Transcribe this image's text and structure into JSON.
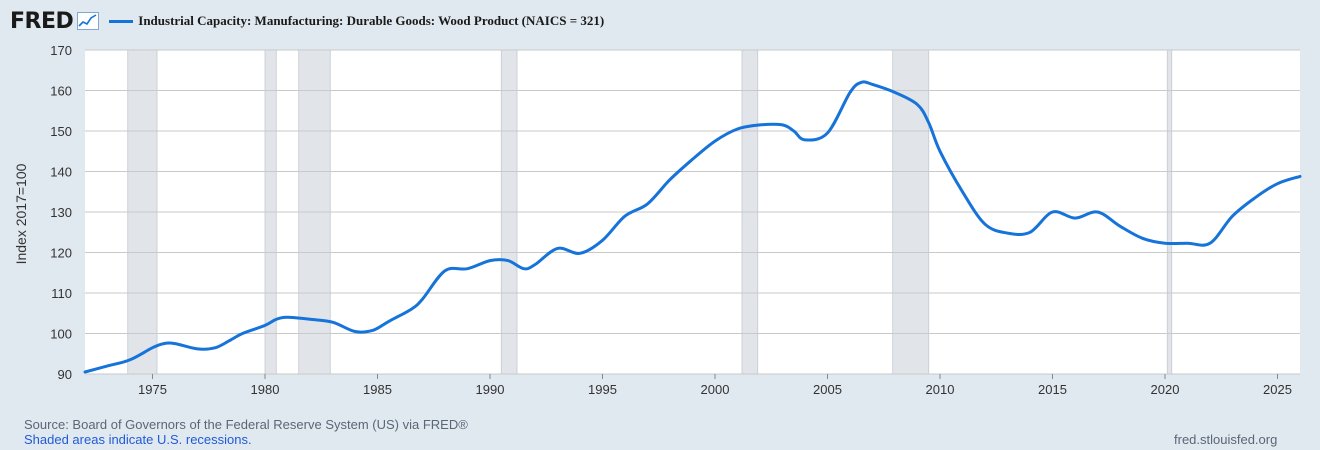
{
  "header": {
    "logo_text": "FRED",
    "logo_icon": "line-chart-icon",
    "series_title": "Industrial Capacity: Manufacturing: Durable Goods: Wood Product (NAICS = 321)"
  },
  "footer": {
    "source": "Source: Board of Governors of the Federal Reserve System (US) via FRED®",
    "recession_note": "Shaded areas indicate U.S. recessions.",
    "site": "fred.stlouisfed.org"
  },
  "colors": {
    "page_background": "#e1e9f0",
    "plot_background": "#ffffff",
    "series_line": "#1673da",
    "recession_band": "#e1e5ea",
    "gridline": "#c9c9c9"
  },
  "chart_data": {
    "type": "line",
    "title": "Industrial Capacity: Manufacturing: Durable Goods: Wood Product (NAICS = 321)",
    "xlabel": "",
    "ylabel": "Index 2017=100",
    "xlim": [
      1972.0,
      2026.0
    ],
    "ylim": [
      90,
      170
    ],
    "x_ticks": [
      1975,
      1980,
      1985,
      1990,
      1995,
      2000,
      2005,
      2010,
      2015,
      2020,
      2025
    ],
    "y_ticks": [
      90,
      100,
      110,
      120,
      130,
      140,
      150,
      160,
      170
    ],
    "grid": "horizontal",
    "recessions": [
      [
        1973.9,
        1975.2
      ],
      [
        1980.0,
        1980.5
      ],
      [
        1981.5,
        1982.9
      ],
      [
        1990.5,
        1991.2
      ],
      [
        2001.2,
        2001.9
      ],
      [
        2007.9,
        2009.5
      ],
      [
        2020.1,
        2020.3
      ]
    ],
    "series": [
      {
        "name": "Industrial Capacity: Manufacturing: Durable Goods: Wood Product (NAICS = 321)",
        "x": [
          1972.0,
          1973.0,
          1974.0,
          1975.0,
          1975.5,
          1976.0,
          1977.0,
          1977.8,
          1978.5,
          1979.0,
          1980.0,
          1980.5,
          1981.0,
          1982.0,
          1983.0,
          1984.0,
          1984.8,
          1985.5,
          1986.5,
          1987.0,
          1988.0,
          1989.0,
          1990.0,
          1990.8,
          1991.5,
          1992.0,
          1993.0,
          1994.0,
          1995.0,
          1996.0,
          1997.0,
          1998.0,
          1999.0,
          2000.0,
          2001.0,
          2002.0,
          2003.0,
          2003.5,
          2004.0,
          2005.0,
          2006.0,
          2006.5,
          2007.0,
          2008.0,
          2009.0,
          2009.5,
          2010.0,
          2011.0,
          2012.0,
          2013.0,
          2014.0,
          2015.0,
          2016.0,
          2017.0,
          2018.0,
          2019.0,
          2020.0,
          2021.0,
          2022.0,
          2023.0,
          2024.0,
          2025.0,
          2026.0
        ],
        "y": [
          90.5,
          92.0,
          93.5,
          96.5,
          97.5,
          97.5,
          96.2,
          96.5,
          98.5,
          100.0,
          102.0,
          103.5,
          104.0,
          103.5,
          102.8,
          100.5,
          100.8,
          103.0,
          106.0,
          108.5,
          115.5,
          116.0,
          118.0,
          118.0,
          116.0,
          117.0,
          121.0,
          119.8,
          123.0,
          129.0,
          132.0,
          138.0,
          143.0,
          147.5,
          150.5,
          151.5,
          151.5,
          150.0,
          147.8,
          149.5,
          159.5,
          162.0,
          161.5,
          159.5,
          156.5,
          152.0,
          145.0,
          135.0,
          127.0,
          124.8,
          125.0,
          130.0,
          128.5,
          130.0,
          126.5,
          123.5,
          122.3,
          122.3,
          122.3,
          129.0,
          133.5,
          137.0,
          138.8
        ]
      }
    ]
  }
}
